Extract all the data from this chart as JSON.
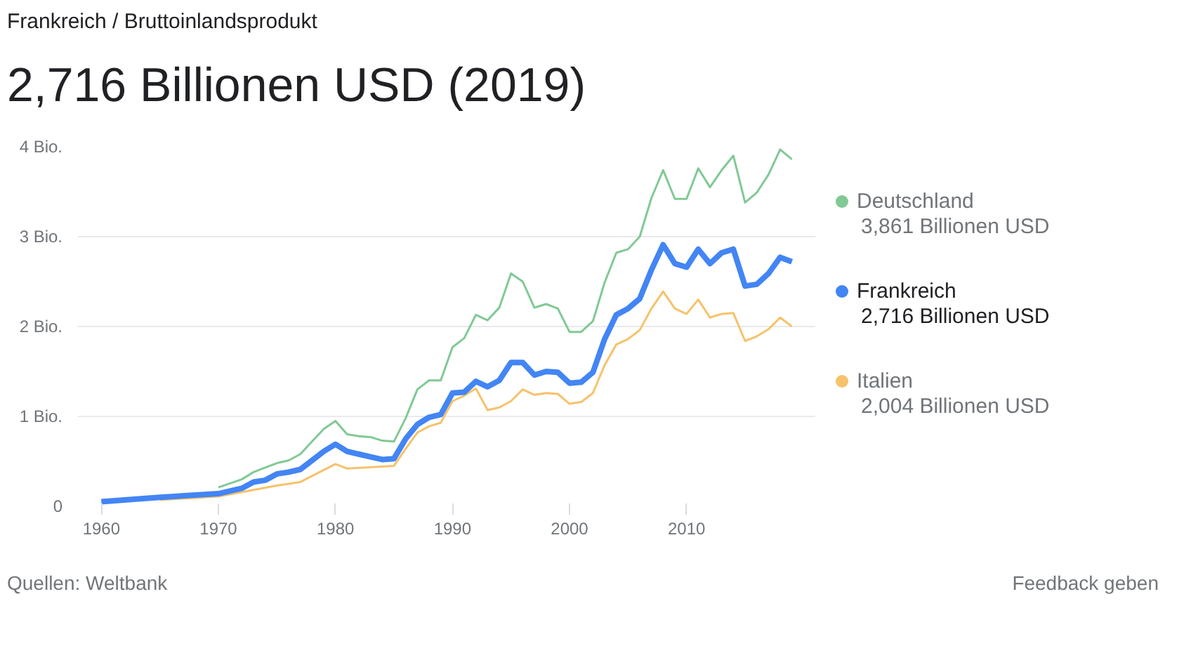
{
  "chart_data": {
    "type": "line",
    "subtitle": "Frankreich / Bruttoinlandsprodukt",
    "title": "2,716 Billionen USD (2019)",
    "xlim": [
      1958,
      2021
    ],
    "xticks": [
      1960,
      1970,
      1980,
      1990,
      2000,
      2010
    ],
    "ylim": [
      0,
      4
    ],
    "yticks": [
      {
        "value": 0,
        "label": "0"
      },
      {
        "value": 1,
        "label": "1 Bio."
      },
      {
        "value": 2,
        "label": "2 Bio."
      },
      {
        "value": 3,
        "label": "3 Bio."
      },
      {
        "value": 4,
        "label": "4 Bio."
      }
    ],
    "grid": "y",
    "legend": "right",
    "line_style": "solid",
    "annotations": [
      "2,004 Billionen USD",
      "2,716 Billionen USD",
      "3,861 Billionen USD",
      "Quellen: Weltbank",
      "Feedback geben"
    ],
    "series": [
      {
        "name": "Italien",
        "color": "#f6c26b",
        "x": [
          1965,
          1970,
          1975,
          1977,
          1980,
          1981,
          1985,
          1986,
          1987,
          1988,
          1989,
          1990,
          1991,
          1992,
          1993,
          1994,
          1995,
          1996,
          1997,
          1998,
          1999,
          2000,
          2001,
          2002,
          2003,
          2004,
          2005,
          2006,
          2007,
          2008,
          2009,
          2010,
          2011,
          2012,
          2013,
          2014,
          2015,
          2016,
          2017,
          2018,
          2019
        ],
        "values": [
          0.07,
          0.11,
          0.23,
          0.27,
          0.47,
          0.42,
          0.45,
          0.64,
          0.82,
          0.89,
          0.93,
          1.17,
          1.23,
          1.31,
          1.07,
          1.1,
          1.17,
          1.3,
          1.24,
          1.26,
          1.25,
          1.14,
          1.16,
          1.26,
          1.57,
          1.8,
          1.86,
          1.96,
          2.2,
          2.39,
          2.2,
          2.14,
          2.3,
          2.1,
          2.14,
          2.15,
          1.84,
          1.89,
          1.97,
          2.1,
          2.0
        ]
      },
      {
        "name": "Frankreich",
        "color": "#4285f4",
        "x": [
          1960,
          1965,
          1970,
          1972,
          1973,
          1974,
          1975,
          1976,
          1977,
          1978,
          1979,
          1980,
          1981,
          1982,
          1983,
          1984,
          1985,
          1986,
          1987,
          1988,
          1989,
          1990,
          1991,
          1992,
          1993,
          1994,
          1995,
          1996,
          1997,
          1998,
          1999,
          2000,
          2001,
          2002,
          2003,
          2004,
          2005,
          2006,
          2007,
          2008,
          2009,
          2010,
          2011,
          2012,
          2013,
          2014,
          2015,
          2016,
          2017,
          2018,
          2019
        ],
        "values": [
          0.05,
          0.1,
          0.14,
          0.2,
          0.27,
          0.29,
          0.36,
          0.38,
          0.41,
          0.51,
          0.61,
          0.69,
          0.61,
          0.58,
          0.55,
          0.52,
          0.53,
          0.75,
          0.91,
          0.99,
          1.02,
          1.26,
          1.27,
          1.39,
          1.33,
          1.4,
          1.6,
          1.6,
          1.46,
          1.5,
          1.49,
          1.37,
          1.38,
          1.49,
          1.86,
          2.13,
          2.2,
          2.31,
          2.63,
          2.91,
          2.7,
          2.66,
          2.86,
          2.7,
          2.82,
          2.86,
          2.45,
          2.47,
          2.59,
          2.77,
          2.72
        ]
      },
      {
        "name": "Deutschland",
        "color": "#81c995",
        "x": [
          1970,
          1972,
          1973,
          1974,
          1975,
          1976,
          1977,
          1978,
          1979,
          1980,
          1981,
          1982,
          1983,
          1984,
          1985,
          1986,
          1987,
          1988,
          1989,
          1990,
          1991,
          1992,
          1993,
          1994,
          1995,
          1996,
          1997,
          1998,
          1999,
          2000,
          2001,
          2002,
          2003,
          2004,
          2005,
          2006,
          2007,
          2008,
          2009,
          2010,
          2011,
          2012,
          2013,
          2014,
          2015,
          2016,
          2017,
          2018,
          2019
        ],
        "values": [
          0.21,
          0.3,
          0.38,
          0.43,
          0.48,
          0.51,
          0.58,
          0.72,
          0.86,
          0.95,
          0.8,
          0.78,
          0.77,
          0.73,
          0.72,
          0.98,
          1.3,
          1.4,
          1.4,
          1.77,
          1.87,
          2.13,
          2.07,
          2.21,
          2.59,
          2.5,
          2.21,
          2.25,
          2.2,
          1.94,
          1.94,
          2.06,
          2.49,
          2.82,
          2.86,
          3.0,
          3.43,
          3.74,
          3.42,
          3.42,
          3.76,
          3.55,
          3.74,
          3.9,
          3.38,
          3.49,
          3.69,
          3.97,
          3.86
        ]
      }
    ]
  }
}
